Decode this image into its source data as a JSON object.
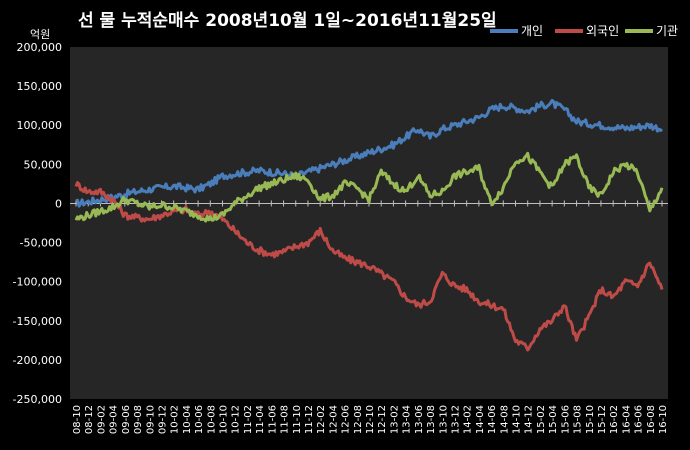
{
  "chart_data": {
    "type": "line",
    "title": "선 물 누적순매수 2008년10월 1일~2016년11월25일",
    "ylabel": "억원",
    "xlabel": "",
    "ylim": [
      -250000,
      200000
    ],
    "yticks": [
      "200,000",
      "150,000",
      "100,000",
      "50,000",
      "0",
      "-50,000",
      "-100,000",
      "-150,000",
      "-200,000",
      "-250,000"
    ],
    "ytick_values": [
      200000,
      150000,
      100000,
      50000,
      0,
      -50000,
      -100000,
      -150000,
      -200000,
      -250000
    ],
    "categories": [
      "08-10",
      "08-12",
      "09-02",
      "09-04",
      "09-06",
      "09-08",
      "09-10",
      "09-12",
      "10-02",
      "10-04",
      "10-06",
      "10-08",
      "10-10",
      "10-12",
      "11-02",
      "11-04",
      "11-06",
      "11-08",
      "11-10",
      "11-12",
      "12-02",
      "12-04",
      "12-06",
      "12-08",
      "12-10",
      "12-12",
      "13-02",
      "13-04",
      "13-06",
      "13-08",
      "13-10",
      "13-12",
      "14-02",
      "14-04",
      "14-06",
      "14-08",
      "14-10",
      "14-12",
      "15-02",
      "15-04",
      "15-06",
      "15-08",
      "15-10",
      "15-12",
      "16-02",
      "16-04",
      "16-06",
      "16-08",
      "16-10"
    ],
    "grid": false,
    "legend_position": "top-right",
    "background": "#262626",
    "series": [
      {
        "name": "개인",
        "color": "#4a7ebb",
        "values": [
          0,
          2000,
          5000,
          8000,
          12000,
          15000,
          18000,
          20000,
          22000,
          20000,
          18000,
          25000,
          35000,
          38000,
          40000,
          42000,
          40000,
          38000,
          35000,
          40000,
          45000,
          50000,
          55000,
          60000,
          65000,
          70000,
          75000,
          85000,
          95000,
          85000,
          95000,
          100000,
          105000,
          110000,
          120000,
          125000,
          122000,
          118000,
          125000,
          128000,
          120000,
          105000,
          102000,
          100000,
          98000,
          96000,
          98000,
          100000,
          95000
        ]
      },
      {
        "name": "외국인",
        "color": "#be4b48",
        "values": [
          25000,
          15000,
          15000,
          5000,
          -15000,
          -18000,
          -20000,
          -15000,
          -10000,
          -8000,
          -15000,
          -10000,
          -20000,
          -35000,
          -50000,
          -60000,
          -65000,
          -62000,
          -55000,
          -50000,
          -35000,
          -60000,
          -70000,
          -75000,
          -80000,
          -90000,
          -100000,
          -120000,
          -130000,
          -125000,
          -90000,
          -105000,
          -110000,
          -125000,
          -130000,
          -135000,
          -175000,
          -185000,
          -160000,
          -150000,
          -130000,
          -175000,
          -145000,
          -110000,
          -120000,
          -100000,
          -105000,
          -75000,
          -110000
        ]
      },
      {
        "name": "기관",
        "color": "#98b954",
        "values": [
          -20000,
          -15000,
          -10000,
          -5000,
          5000,
          0,
          -5000,
          -2000,
          -5000,
          -10000,
          -15000,
          -20000,
          -15000,
          0,
          10000,
          20000,
          25000,
          30000,
          35000,
          30000,
          5000,
          10000,
          25000,
          20000,
          5000,
          40000,
          25000,
          15000,
          35000,
          10000,
          15000,
          35000,
          40000,
          45000,
          0,
          20000,
          55000,
          60000,
          40000,
          20000,
          50000,
          60000,
          20000,
          10000,
          40000,
          50000,
          40000,
          -10000,
          20000
        ]
      }
    ]
  }
}
